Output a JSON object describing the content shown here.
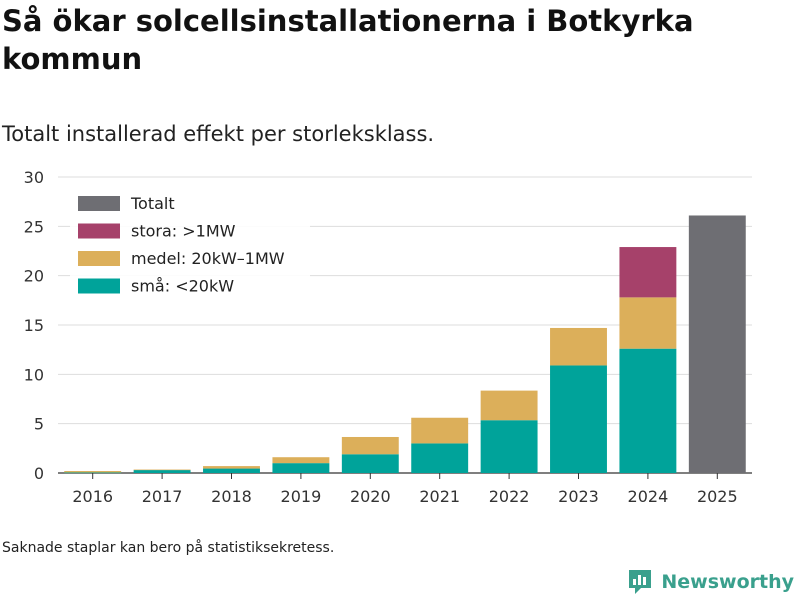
{
  "title": "Så ökar solcellsinstallationerna i Botkyrka kommun",
  "subtitle": "Totalt installerad effekt per storleksklass.",
  "footnote": "Saknade staplar kan bero på statistiksekretess.",
  "brand": {
    "name": "Newsworthy",
    "icon": "newsworthy-logo-icon",
    "color": "#3aa08d"
  },
  "chart_data": {
    "type": "bar",
    "stacked": true,
    "categories": [
      "2016",
      "2017",
      "2018",
      "2019",
      "2020",
      "2021",
      "2022",
      "2023",
      "2024",
      "2025"
    ],
    "series": [
      {
        "name": "små: <20kW",
        "color": "#00a39a",
        "values": [
          0.05,
          0.3,
          0.45,
          1.0,
          1.9,
          3.0,
          5.35,
          10.9,
          12.6,
          null
        ]
      },
      {
        "name": "medel: 20kW–1MW",
        "color": "#dcaf5a",
        "values": [
          0.15,
          0.05,
          0.25,
          0.6,
          1.75,
          2.6,
          3.0,
          3.8,
          5.2,
          null
        ]
      },
      {
        "name": "stora: >1MW",
        "color": "#a6416a",
        "values": [
          null,
          null,
          null,
          null,
          null,
          null,
          null,
          null,
          5.1,
          null
        ]
      },
      {
        "name": "Totalt",
        "color": "#6e6e73",
        "values": [
          null,
          null,
          null,
          null,
          null,
          null,
          null,
          null,
          null,
          26.1
        ]
      }
    ],
    "legend_order": [
      "Totalt",
      "stora: >1MW",
      "medel: 20kW–1MW",
      "små: <20kW"
    ],
    "legend_position": "top-left",
    "yticks": [
      0,
      5,
      10,
      15,
      20,
      25,
      30
    ],
    "ylim": [
      0,
      30
    ],
    "xlabel": "",
    "ylabel": "",
    "grid": true
  }
}
